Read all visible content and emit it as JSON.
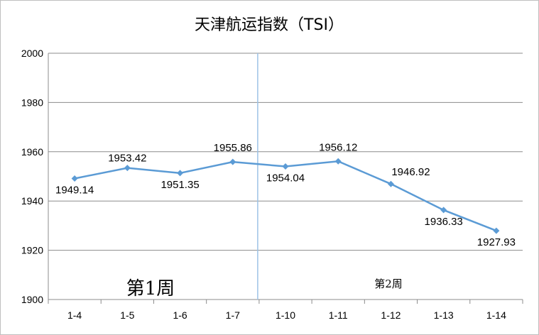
{
  "chart_data": {
    "type": "line",
    "title": "天津航运指数（TSI）",
    "categories": [
      "1-4",
      "1-5",
      "1-6",
      "1-7",
      "1-10",
      "1-11",
      "1-12",
      "1-13",
      "1-14"
    ],
    "series": [
      {
        "values": [
          1949.14,
          1953.42,
          1951.35,
          1955.86,
          1954.04,
          1956.12,
          1946.92,
          1936.33,
          1927.93
        ],
        "labels": [
          "1949.14",
          "1953.42",
          "1951.35",
          "1955.86",
          "1954.04",
          "1956.12",
          "1946.92",
          "1936.33",
          "1927.93"
        ],
        "color": "#5B9BD5"
      }
    ],
    "ylim": [
      1900,
      2000
    ],
    "yticks": [
      "1900",
      "1920",
      "1940",
      "1960",
      "1980",
      "2000"
    ],
    "grid": true,
    "legend": "none",
    "divider_color": "#9DC3E6",
    "annotations": [
      {
        "text": "第1周"
      },
      {
        "text": "第2周"
      }
    ]
  }
}
